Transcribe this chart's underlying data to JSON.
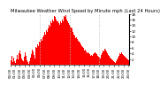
{
  "title": "Milwaukee Weather Wind Speed by Minute mph (Last 24 Hours)",
  "title_fontsize": 3.8,
  "bar_color": "#ff0000",
  "background_color": "#ffffff",
  "grid_color": "#bbbbbb",
  "ylim": [
    0,
    18
  ],
  "yticks": [
    2,
    4,
    6,
    8,
    10,
    12,
    14,
    16,
    18
  ],
  "ytick_fontsize": 3.0,
  "xtick_fontsize": 2.8,
  "n_bars": 144,
  "vline_positions": [
    0.25,
    0.5,
    0.75
  ],
  "wind_values": [
    2.1,
    1.5,
    3.2,
    0.8,
    2.5,
    1.2,
    0.5,
    1.8,
    3.5,
    2.0,
    4.2,
    5.1,
    3.8,
    2.3,
    1.5,
    0.8,
    1.2,
    2.8,
    4.5,
    3.2,
    1.5,
    0.8,
    0.3,
    1.2,
    2.5,
    3.8,
    5.2,
    4.8,
    3.5,
    2.1,
    4.5,
    6.2,
    5.8,
    7.1,
    6.5,
    8.2,
    7.8,
    9.1,
    8.5,
    9.8,
    10.2,
    11.5,
    10.8,
    12.1,
    11.5,
    13.2,
    12.8,
    14.1,
    13.5,
    15.2,
    14.8,
    16.1,
    15.5,
    17.2,
    16.8,
    16.1,
    15.5,
    15.2,
    14.8,
    14.1,
    14.5,
    15.2,
    14.8,
    16.1,
    15.5,
    17.2,
    16.8,
    17.5,
    16.1,
    15.5,
    14.8,
    14.1,
    13.5,
    13.2,
    12.8,
    12.1,
    11.5,
    10.8,
    10.2,
    9.5,
    9.8,
    9.1,
    8.5,
    8.2,
    7.8,
    7.1,
    6.5,
    6.2,
    5.8,
    5.1,
    5.5,
    5.2,
    4.8,
    4.1,
    4.5,
    4.2,
    3.8,
    3.1,
    3.5,
    3.2,
    3.8,
    4.1,
    4.5,
    4.2,
    3.8,
    3.5,
    3.2,
    2.8,
    2.5,
    2.1,
    3.5,
    4.2,
    5.1,
    4.8,
    5.5,
    5.2,
    4.8,
    4.1,
    3.5,
    3.2,
    2.8,
    2.5,
    2.1,
    1.8,
    1.5,
    1.2,
    0.8,
    0.5,
    1.2,
    1.8,
    2.5,
    3.2,
    4.1,
    3.8,
    4.5,
    4.2,
    3.8,
    3.5,
    3.2,
    2.8,
    2.5,
    2.1,
    1.8,
    1.5
  ]
}
